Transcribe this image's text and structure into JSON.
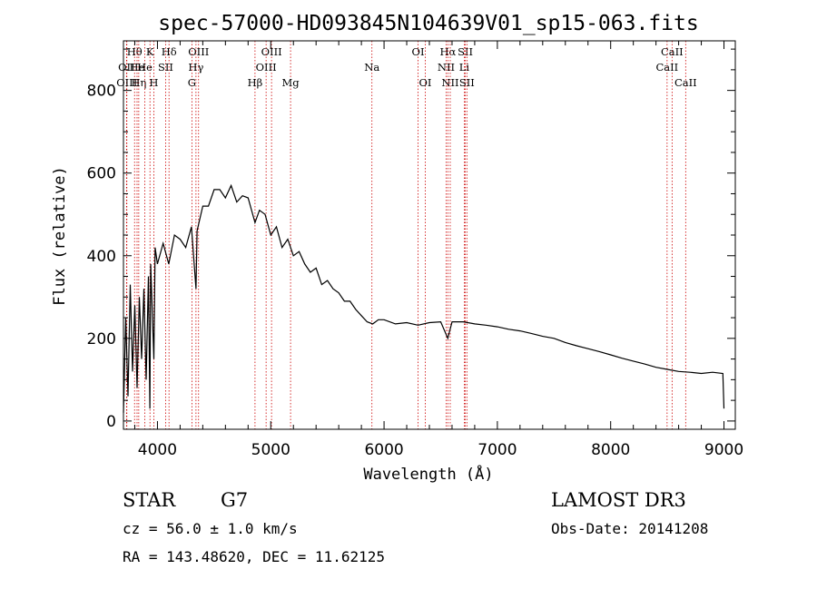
{
  "chart_data": {
    "type": "line",
    "title": "spec-57000-HD093845N104639V01_sp15-063.fits",
    "xlabel": "Wavelength (Å)",
    "ylabel": "Flux (relative)",
    "xlim": [
      3700,
      9100
    ],
    "ylim": [
      -20,
      920
    ],
    "xticks": [
      4000,
      5000,
      6000,
      7000,
      8000,
      9000
    ],
    "yticks": [
      0,
      200,
      400,
      600,
      800
    ],
    "series": [
      {
        "name": "flux",
        "x": [
          3700,
          3720,
          3740,
          3760,
          3780,
          3800,
          3820,
          3840,
          3860,
          3880,
          3900,
          3920,
          3933,
          3940,
          3950,
          3968,
          3980,
          4000,
          4050,
          4100,
          4150,
          4200,
          4250,
          4300,
          4340,
          4350,
          4400,
          4450,
          4500,
          4550,
          4600,
          4650,
          4700,
          4750,
          4800,
          4861,
          4900,
          4950,
          5000,
          5050,
          5100,
          5150,
          5200,
          5250,
          5300,
          5350,
          5400,
          5450,
          5500,
          5550,
          5600,
          5650,
          5700,
          5750,
          5800,
          5850,
          5900,
          5950,
          6000,
          6100,
          6200,
          6300,
          6400,
          6500,
          6563,
          6600,
          6700,
          6800,
          6900,
          7000,
          7100,
          7200,
          7300,
          7400,
          7500,
          7600,
          7700,
          7800,
          7900,
          8000,
          8100,
          8200,
          8300,
          8400,
          8500,
          8600,
          8700,
          8800,
          8900,
          8990,
          9000
        ],
        "y": [
          20,
          250,
          60,
          330,
          120,
          280,
          80,
          300,
          150,
          320,
          100,
          350,
          30,
          380,
          300,
          150,
          420,
          380,
          430,
          380,
          450,
          440,
          420,
          470,
          320,
          460,
          520,
          520,
          560,
          560,
          540,
          570,
          530,
          545,
          540,
          480,
          510,
          500,
          450,
          470,
          420,
          440,
          400,
          410,
          380,
          360,
          370,
          330,
          340,
          320,
          310,
          290,
          290,
          270,
          255,
          240,
          235,
          245,
          245,
          235,
          238,
          232,
          238,
          240,
          200,
          240,
          240,
          235,
          232,
          228,
          222,
          218,
          212,
          205,
          200,
          190,
          182,
          175,
          168,
          160,
          152,
          145,
          138,
          130,
          125,
          120,
          118,
          115,
          118,
          115,
          30
        ]
      }
    ],
    "line_markers": [
      {
        "label": "Hθ",
        "wavelength": 3798,
        "row": 1
      },
      {
        "label": "OII",
        "wavelength": 3727,
        "row": 2
      },
      {
        "label": "OIII",
        "wavelength": 3730,
        "row": 3
      },
      {
        "label": "He",
        "wavelength": 3820,
        "row": 2
      },
      {
        "label": "Hη",
        "wavelength": 3835,
        "row": 3
      },
      {
        "label": "K",
        "wavelength": 3934,
        "row": 1
      },
      {
        "label": "He",
        "wavelength": 3889,
        "row": 2
      },
      {
        "label": "H",
        "wavelength": 3968,
        "row": 3
      },
      {
        "label": "Hδ",
        "wavelength": 4102,
        "row": 1
      },
      {
        "label": "SII",
        "wavelength": 4072,
        "row": 2
      },
      {
        "label": "OIII",
        "wavelength": 4363,
        "row": 1
      },
      {
        "label": "Hγ",
        "wavelength": 4340,
        "row": 2
      },
      {
        "label": "G",
        "wavelength": 4304,
        "row": 3
      },
      {
        "label": "OIII",
        "wavelength": 5007,
        "row": 1
      },
      {
        "label": "OIII",
        "wavelength": 4959,
        "row": 2
      },
      {
        "label": "Hβ",
        "wavelength": 4861,
        "row": 3
      },
      {
        "label": "Mg",
        "wavelength": 5175,
        "row": 3
      },
      {
        "label": "Na",
        "wavelength": 5893,
        "row": 2
      },
      {
        "label": "OI",
        "wavelength": 6300,
        "row": 1
      },
      {
        "label": "OI",
        "wavelength": 6364,
        "row": 3
      },
      {
        "label": "Hα",
        "wavelength": 6563,
        "row": 1
      },
      {
        "label": "NII",
        "wavelength": 6548,
        "row": 2
      },
      {
        "label": "NII",
        "wavelength": 6584,
        "row": 3
      },
      {
        "label": "SII",
        "wavelength": 6717,
        "row": 1
      },
      {
        "label": "Li",
        "wavelength": 6708,
        "row": 2
      },
      {
        "label": "SII",
        "wavelength": 6731,
        "row": 3
      },
      {
        "label": "CaII",
        "wavelength": 8542,
        "row": 1
      },
      {
        "label": "CaII",
        "wavelength": 8498,
        "row": 2
      },
      {
        "label": "CaII",
        "wavelength": 8662,
        "row": 3
      }
    ],
    "marker_color": "#cc0000",
    "line_color": "#000000"
  },
  "footer": {
    "object_class": "STAR",
    "subclass": "G7",
    "survey": "LAMOST DR3",
    "redshift": "cz = 56.0 ± 1.0 km/s",
    "obs_date": "Obs-Date: 20141208",
    "coords": "RA = 143.48620, DEC =  11.62125"
  }
}
